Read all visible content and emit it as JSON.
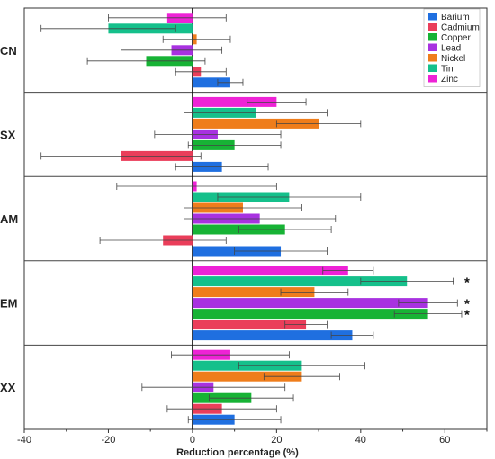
{
  "chart_data": {
    "type": "bar",
    "orientation": "horizontal",
    "xlabel": "Reduction percentage (%)",
    "ylabel": "",
    "xlim": [
      -40,
      70
    ],
    "xticks": [
      -40,
      -20,
      0,
      20,
      40,
      60
    ],
    "grid": false,
    "legend_position": "top-right",
    "categories": [
      "CN",
      "SX",
      "AM",
      "EM",
      "XX"
    ],
    "series": [
      {
        "name": "Barium",
        "color": "#1f6fe0",
        "values": [
          9,
          7,
          21,
          38,
          10
        ],
        "errors": [
          3,
          11,
          11,
          5,
          11
        ]
      },
      {
        "name": "Cadmium",
        "color": "#ea3e5a",
        "values": [
          2,
          -17,
          -7,
          27,
          7
        ],
        "errors": [
          6,
          19,
          15,
          5,
          13
        ]
      },
      {
        "name": "Copper",
        "color": "#17b335",
        "values": [
          -11,
          10,
          22,
          56,
          14
        ],
        "errors": [
          14,
          11,
          11,
          8,
          10
        ]
      },
      {
        "name": "Lead",
        "color": "#a832e0",
        "values": [
          -5,
          6,
          16,
          56,
          5
        ],
        "errors": [
          12,
          15,
          18,
          7,
          17
        ]
      },
      {
        "name": "Nickel",
        "color": "#ef7d1b",
        "values": [
          1,
          30,
          12,
          29,
          26
        ],
        "errors": [
          8,
          10,
          14,
          8,
          9
        ]
      },
      {
        "name": "Tin",
        "color": "#15c08b",
        "values": [
          -20,
          15,
          23,
          51,
          26
        ],
        "errors": [
          16,
          17,
          17,
          11,
          15
        ]
      },
      {
        "name": "Zinc",
        "color": "#ee22d6",
        "values": [
          -6,
          20,
          1,
          37,
          9
        ],
        "errors": [
          14,
          7,
          19,
          6,
          14
        ]
      }
    ],
    "annotations": [
      {
        "category": "EM",
        "series": "Tin",
        "text": "*"
      },
      {
        "category": "EM",
        "series": "Lead",
        "text": "*"
      },
      {
        "category": "EM",
        "series": "Copper",
        "text": "*"
      }
    ]
  }
}
